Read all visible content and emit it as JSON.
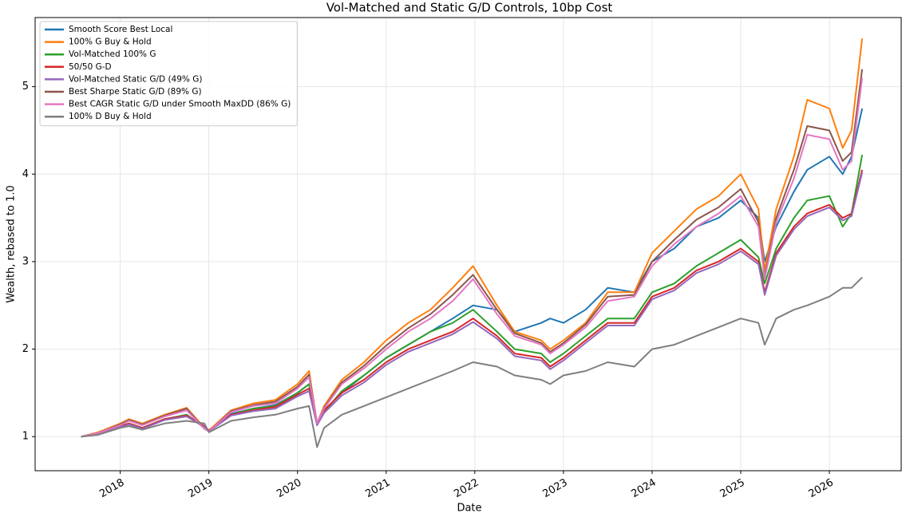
{
  "chart_data": {
    "type": "line",
    "title": "Vol-Matched and Static G/D Controls, 10bp Cost",
    "xlabel": "Date",
    "ylabel": "Wealth, rebased to 1.0",
    "x": [
      2017.56,
      2017.75,
      2018.0,
      2018.1,
      2018.25,
      2018.5,
      2018.75,
      2018.95,
      2019.0,
      2019.25,
      2019.5,
      2019.75,
      2020.0,
      2020.13,
      2020.22,
      2020.3,
      2020.5,
      2020.75,
      2021.0,
      2021.25,
      2021.5,
      2021.75,
      2021.98,
      2022.25,
      2022.45,
      2022.75,
      2022.85,
      2023.0,
      2023.25,
      2023.5,
      2023.8,
      2024.0,
      2024.25,
      2024.5,
      2024.75,
      2025.0,
      2025.2,
      2025.27,
      2025.4,
      2025.6,
      2025.75,
      2026.0,
      2026.15,
      2026.25,
      2026.37
    ],
    "series": [
      {
        "name": "Smooth Score Best Local",
        "color": "#1f77b4",
        "values": [
          1.0,
          1.03,
          1.12,
          1.15,
          1.1,
          1.2,
          1.25,
          1.1,
          1.06,
          1.26,
          1.32,
          1.36,
          1.5,
          1.6,
          1.15,
          1.3,
          1.5,
          1.7,
          1.9,
          2.05,
          2.2,
          2.35,
          2.5,
          2.45,
          2.2,
          2.3,
          2.35,
          2.3,
          2.45,
          2.7,
          2.65,
          3.0,
          3.15,
          3.4,
          3.5,
          3.7,
          3.5,
          3.0,
          3.4,
          3.8,
          4.05,
          4.2,
          4.0,
          4.2,
          4.75
        ]
      },
      {
        "name": "100% G Buy & Hold",
        "color": "#ff7f0e",
        "values": [
          1.0,
          1.05,
          1.15,
          1.2,
          1.15,
          1.25,
          1.33,
          1.1,
          1.07,
          1.3,
          1.38,
          1.42,
          1.6,
          1.75,
          1.15,
          1.35,
          1.65,
          1.85,
          2.1,
          2.3,
          2.45,
          2.7,
          2.95,
          2.5,
          2.2,
          2.1,
          2.0,
          2.1,
          2.3,
          2.65,
          2.65,
          3.1,
          3.35,
          3.6,
          3.75,
          4.0,
          3.6,
          2.9,
          3.6,
          4.2,
          4.85,
          4.75,
          4.3,
          4.5,
          5.55
        ]
      },
      {
        "name": "Vol-Matched 100% G",
        "color": "#2ca02c",
        "values": [
          1.0,
          1.03,
          1.12,
          1.15,
          1.1,
          1.2,
          1.25,
          1.1,
          1.06,
          1.25,
          1.32,
          1.35,
          1.5,
          1.6,
          1.15,
          1.28,
          1.52,
          1.7,
          1.9,
          2.05,
          2.2,
          2.3,
          2.45,
          2.2,
          2.0,
          1.95,
          1.85,
          1.95,
          2.15,
          2.35,
          2.35,
          2.65,
          2.75,
          2.95,
          3.1,
          3.25,
          3.05,
          2.75,
          3.15,
          3.5,
          3.7,
          3.75,
          3.4,
          3.55,
          4.22
        ]
      },
      {
        "name": "50/50 G-D",
        "color": "#d62728",
        "values": [
          1.0,
          1.03,
          1.12,
          1.15,
          1.1,
          1.2,
          1.24,
          1.12,
          1.07,
          1.25,
          1.3,
          1.34,
          1.48,
          1.55,
          1.15,
          1.3,
          1.5,
          1.65,
          1.85,
          2.0,
          2.1,
          2.2,
          2.35,
          2.15,
          1.95,
          1.9,
          1.8,
          1.9,
          2.1,
          2.3,
          2.3,
          2.6,
          2.7,
          2.9,
          3.0,
          3.15,
          3.0,
          2.65,
          3.1,
          3.4,
          3.55,
          3.65,
          3.5,
          3.55,
          4.05
        ]
      },
      {
        "name": "Vol-Matched Static G/D (49% G)",
        "color": "#9467bd",
        "values": [
          1.0,
          1.03,
          1.11,
          1.14,
          1.09,
          1.19,
          1.23,
          1.11,
          1.06,
          1.24,
          1.29,
          1.32,
          1.46,
          1.52,
          1.13,
          1.27,
          1.47,
          1.62,
          1.82,
          1.97,
          2.07,
          2.17,
          2.31,
          2.12,
          1.92,
          1.87,
          1.77,
          1.87,
          2.07,
          2.27,
          2.27,
          2.57,
          2.67,
          2.87,
          2.97,
          3.12,
          2.97,
          2.62,
          3.07,
          3.37,
          3.52,
          3.62,
          3.47,
          3.52,
          4.02
        ]
      },
      {
        "name": "Best Sharpe Static G/D (89% G)",
        "color": "#8c564b",
        "values": [
          1.0,
          1.04,
          1.14,
          1.19,
          1.14,
          1.24,
          1.32,
          1.09,
          1.06,
          1.29,
          1.36,
          1.4,
          1.57,
          1.71,
          1.15,
          1.33,
          1.62,
          1.81,
          2.04,
          2.24,
          2.4,
          2.62,
          2.85,
          2.45,
          2.18,
          2.07,
          1.97,
          2.07,
          2.28,
          2.6,
          2.62,
          3.0,
          3.25,
          3.48,
          3.62,
          3.83,
          3.45,
          2.82,
          3.5,
          4.05,
          4.55,
          4.5,
          4.15,
          4.25,
          5.2
        ]
      },
      {
        "name": "Best CAGR Static G/D under Smooth MaxDD (86% G)",
        "color": "#e377c2",
        "values": [
          1.0,
          1.04,
          1.13,
          1.18,
          1.13,
          1.23,
          1.3,
          1.09,
          1.06,
          1.28,
          1.35,
          1.38,
          1.55,
          1.68,
          1.15,
          1.32,
          1.6,
          1.78,
          2.0,
          2.2,
          2.35,
          2.55,
          2.8,
          2.4,
          2.15,
          2.05,
          1.95,
          2.05,
          2.25,
          2.55,
          2.6,
          2.95,
          3.2,
          3.4,
          3.55,
          3.75,
          3.4,
          2.8,
          3.45,
          3.95,
          4.45,
          4.4,
          4.05,
          4.15,
          5.1
        ]
      },
      {
        "name": "100% D Buy & Hold",
        "color": "#7f7f7f",
        "values": [
          1.0,
          1.02,
          1.1,
          1.12,
          1.08,
          1.15,
          1.18,
          1.15,
          1.05,
          1.18,
          1.22,
          1.25,
          1.32,
          1.35,
          0.88,
          1.1,
          1.25,
          1.35,
          1.45,
          1.55,
          1.65,
          1.75,
          1.85,
          1.8,
          1.7,
          1.65,
          1.6,
          1.7,
          1.75,
          1.85,
          1.8,
          2.0,
          2.05,
          2.15,
          2.25,
          2.35,
          2.3,
          2.05,
          2.35,
          2.45,
          2.5,
          2.6,
          2.7,
          2.7,
          2.82
        ]
      }
    ],
    "xlim": [
      2017.04,
      2026.81
    ],
    "ylim": [
      0.61,
      5.79
    ],
    "xticks": [
      2018,
      2019,
      2020,
      2021,
      2022,
      2023,
      2024,
      2025,
      2026
    ],
    "yticks": [
      1,
      2,
      3,
      4,
      5
    ],
    "grid": true,
    "legend": "upper left"
  }
}
